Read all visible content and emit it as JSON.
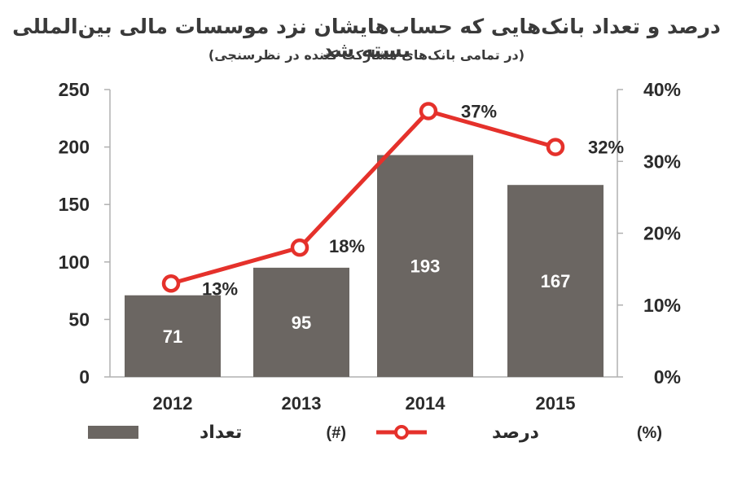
{
  "chart_data": {
    "type": "bar",
    "title": "درصد و تعداد بانک‌هایی که حساب‌هایشان نزد موسسات مالی بین‌المللی بسته شد",
    "subtitle": "(در تمامی بانک‌های مشارکت کننده در نظرسنجی)",
    "categories": [
      "2012",
      "2013",
      "2014",
      "2015"
    ],
    "series": [
      {
        "name": "تعداد",
        "kind": "bar",
        "axis": "left",
        "unit": "(#)",
        "values": [
          71,
          95,
          193,
          167
        ],
        "value_labels": [
          "71",
          "95",
          "193",
          "167"
        ]
      },
      {
        "name": "درصد",
        "kind": "line",
        "axis": "right",
        "unit": "(%)",
        "values": [
          13,
          18,
          37,
          32
        ],
        "value_labels": [
          "13%",
          "18%",
          "37%",
          "32%"
        ]
      }
    ],
    "y_left": {
      "lim": [
        0,
        250
      ],
      "ticks": [
        "0",
        "50",
        "100",
        "150",
        "200",
        "250"
      ]
    },
    "y_right": {
      "lim": [
        0,
        40
      ],
      "ticks": [
        "0%",
        "10%",
        "20%",
        "30%",
        "40%"
      ]
    },
    "legend_position": "bottom",
    "grid": false,
    "colors": {
      "bar": "#6b6662",
      "line": "#e5312b",
      "text": "#2b2b2b",
      "axis": "#b0b0b0"
    }
  }
}
